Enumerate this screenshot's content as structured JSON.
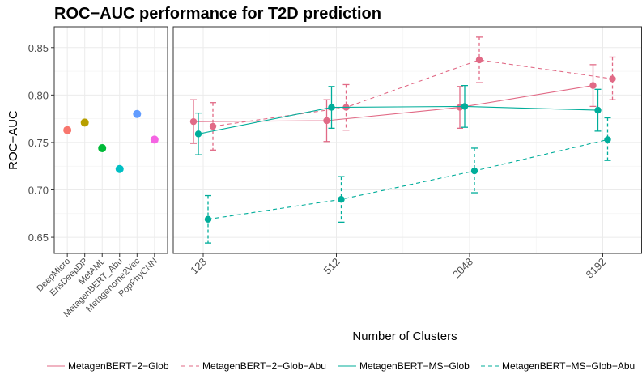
{
  "chart_data": [
    {
      "type": "scatter",
      "panel": "baselines",
      "title": "ROC−AUC performance for T2D prediction",
      "ylabel": "ROC−AUC",
      "ylim": [
        0.633,
        0.872
      ],
      "y_ticks": [
        0.65,
        0.7,
        0.75,
        0.8,
        0.85
      ],
      "y_tick_labels": [
        "0.65",
        "0.70",
        "0.75",
        "0.80",
        "0.85"
      ],
      "grid": true,
      "categories": [
        "DeepMicro",
        "EnsDeepDP",
        "MetAML",
        "MetagenBERT_Abu",
        "Metagenome2Vec",
        "PopPhyCNN"
      ],
      "values": [
        0.763,
        0.771,
        0.744,
        0.722,
        0.78,
        0.753
      ],
      "colors": [
        "#F8766D",
        "#B79F00",
        "#00BA38",
        "#00BFC4",
        "#619CFF",
        "#F564E3"
      ]
    },
    {
      "type": "line",
      "panel": "clusters",
      "xlabel": "Number of Clusters",
      "x_scale": "log2",
      "categories": [
        "128",
        "512",
        "2048",
        "8192"
      ],
      "ylim": [
        0.633,
        0.872
      ],
      "grid": true,
      "legend_position": "bottom",
      "series": [
        {
          "name": "MetagenBERT−2−Glob",
          "linetype": "solid",
          "color": "#E16A86",
          "values": [
            0.772,
            0.773,
            0.787,
            0.81
          ],
          "lower": [
            0.749,
            0.751,
            0.765,
            0.788
          ],
          "upper": [
            0.795,
            0.795,
            0.809,
            0.832
          ]
        },
        {
          "name": "MetagenBERT−2−Glob−Abu",
          "linetype": "dashed",
          "color": "#E16A86",
          "values": [
            0.767,
            0.787,
            0.837,
            0.817
          ],
          "lower": [
            0.742,
            0.763,
            0.813,
            0.795
          ],
          "upper": [
            0.792,
            0.811,
            0.861,
            0.84
          ]
        },
        {
          "name": "MetagenBERT−MS−Glob",
          "linetype": "solid",
          "color": "#00AD9A",
          "values": [
            0.759,
            0.787,
            0.788,
            0.784
          ],
          "lower": [
            0.737,
            0.765,
            0.766,
            0.762
          ],
          "upper": [
            0.781,
            0.809,
            0.81,
            0.806
          ]
        },
        {
          "name": "MetagenBERT−MS−Glob−Abu",
          "linetype": "dashed",
          "color": "#00AD9A",
          "values": [
            0.669,
            0.69,
            0.72,
            0.753
          ],
          "lower": [
            0.644,
            0.666,
            0.697,
            0.731
          ],
          "upper": [
            0.694,
            0.714,
            0.744,
            0.776
          ]
        }
      ]
    }
  ]
}
